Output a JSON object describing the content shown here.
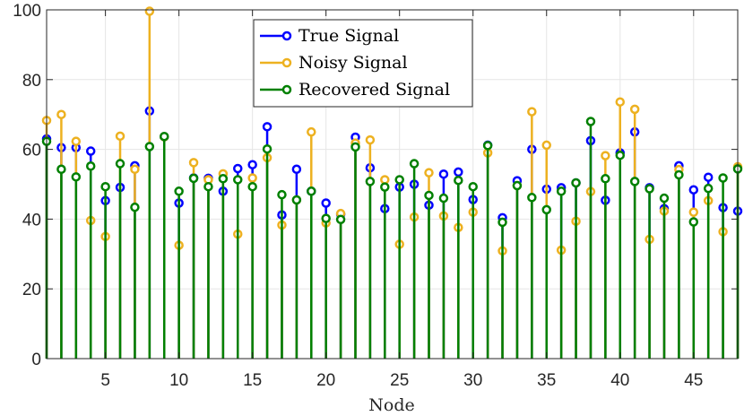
{
  "chart_data": {
    "type": "stem",
    "xlabel": "Node",
    "ylabel": "",
    "xlim": [
      1,
      48
    ],
    "ylim": [
      0,
      100
    ],
    "x_ticks": [
      5,
      10,
      15,
      20,
      25,
      30,
      35,
      40,
      45
    ],
    "y_ticks": [
      0,
      20,
      40,
      60,
      80,
      100
    ],
    "grid": true,
    "legend_position": "top-center",
    "x": [
      1,
      2,
      3,
      4,
      5,
      6,
      7,
      8,
      9,
      10,
      11,
      12,
      13,
      14,
      15,
      16,
      17,
      18,
      19,
      20,
      21,
      22,
      23,
      24,
      25,
      26,
      27,
      28,
      29,
      30,
      31,
      32,
      33,
      34,
      35,
      36,
      37,
      38,
      39,
      40,
      41,
      42,
      43,
      44,
      45,
      46,
      47,
      48
    ],
    "series": [
      {
        "name": "True Signal",
        "color": "#0000ff",
        "values": [
          63.0,
          60.5,
          60.5,
          59.5,
          45.3,
          49.1,
          55.3,
          71.0,
          63.6,
          44.6,
          51.8,
          51.7,
          48.0,
          54.5,
          55.6,
          66.5,
          41.2,
          54.3,
          48.0,
          44.6,
          41.4,
          63.5,
          54.7,
          43.0,
          49.2,
          50.0,
          44.0,
          52.9,
          53.5,
          45.6,
          61.2,
          40.4,
          51.0,
          60.0,
          48.6,
          49.0,
          50.4,
          62.5,
          45.4,
          59.0,
          65.0,
          49.0,
          43.0,
          55.3,
          48.4,
          52.0,
          43.3,
          42.3
        ]
      },
      {
        "name": "Noisy Signal",
        "color": "#edb120",
        "values": [
          68.3,
          70.0,
          62.3,
          39.6,
          35.0,
          63.8,
          54.3,
          99.6,
          63.6,
          32.5,
          56.2,
          51.3,
          53.0,
          35.7,
          51.8,
          57.6,
          38.3,
          45.5,
          65.0,
          38.9,
          41.6,
          61.8,
          62.7,
          51.3,
          32.8,
          40.6,
          53.3,
          40.9,
          37.6,
          42.0,
          59.0,
          30.9,
          49.6,
          70.8,
          61.2,
          31.1,
          39.4,
          47.9,
          58.2,
          73.6,
          71.5,
          34.2,
          42.3,
          54.2,
          42.0,
          45.3,
          36.4,
          55.0
        ]
      },
      {
        "name": "Recovered Signal",
        "color": "#008000",
        "values": [
          62.3,
          54.3,
          52.1,
          55.2,
          49.3,
          55.9,
          43.4,
          60.8,
          63.7,
          48.0,
          51.7,
          49.3,
          51.6,
          51.3,
          49.3,
          60.1,
          47.0,
          45.5,
          48.0,
          40.2,
          39.9,
          60.7,
          50.8,
          49.2,
          51.3,
          55.9,
          46.8,
          46.0,
          51.1,
          49.3,
          61.1,
          39.1,
          49.6,
          46.2,
          42.7,
          48.0,
          50.4,
          68.0,
          51.6,
          58.3,
          50.8,
          48.7,
          46.0,
          52.7,
          39.2,
          48.8,
          51.8,
          54.4
        ]
      }
    ]
  }
}
